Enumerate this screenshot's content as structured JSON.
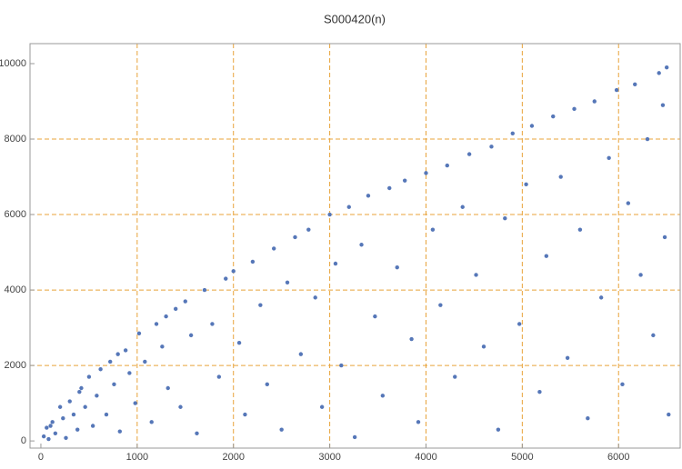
{
  "chart_data": {
    "type": "scatter",
    "title": "S000420(n)",
    "xlim": [
      -113,
      6640
    ],
    "ylim": [
      -190,
      10530
    ],
    "xticks": [
      0,
      1000,
      2000,
      3000,
      4000,
      5000,
      6000
    ],
    "yticks": [
      0,
      2000,
      4000,
      6000,
      8000,
      10000
    ],
    "xgrid": [
      1000,
      2000,
      3000,
      4000,
      5000,
      6000
    ],
    "ygrid": [
      2000,
      4000,
      6000,
      8000
    ],
    "grid_color": "#e8a33a",
    "series": [
      {
        "color": "#5677b8",
        "x": [
          30,
          60,
          80,
          120,
          150,
          200,
          230,
          260,
          300,
          340,
          380,
          420,
          460,
          500,
          540,
          580,
          620,
          680,
          720,
          760,
          820,
          880,
          920,
          980,
          1020,
          1080,
          1150,
          1200,
          1260,
          1320,
          1400,
          1450,
          1500,
          1560,
          1620,
          1700,
          1780,
          1850,
          1920,
          2000,
          2060,
          2120,
          2200,
          2280,
          2350,
          2420,
          2500,
          2560,
          2640,
          2700,
          2780,
          2850,
          2920,
          3000,
          3060,
          3120,
          3200,
          3260,
          3330,
          3400,
          3470,
          3550,
          3620,
          3700,
          3780,
          3850,
          3920,
          4000,
          4070,
          4150,
          4220,
          4300,
          4380,
          4450,
          4520,
          4600,
          4680,
          4750,
          4820,
          4900,
          4970,
          5040,
          5100,
          5180,
          5250,
          5320,
          5400,
          5470,
          5540,
          5600,
          5680,
          5750,
          5820,
          5900,
          5980,
          6040,
          6100,
          6170,
          6230,
          6300,
          6360,
          6420,
          6480,
          6500,
          6520,
          6460,
          1300,
          800,
          400,
          100
        ],
        "y": [
          120,
          350,
          50,
          500,
          200,
          900,
          600,
          80,
          1050,
          700,
          300,
          1400,
          900,
          1700,
          400,
          1200,
          1900,
          700,
          2100,
          1500,
          250,
          2400,
          1800,
          1000,
          2850,
          2100,
          500,
          3100,
          2500,
          1400,
          3500,
          900,
          3700,
          2800,
          200,
          4000,
          3100,
          1700,
          4300,
          4500,
          2600,
          700,
          4750,
          3600,
          1500,
          5100,
          300,
          4200,
          5400,
          2300,
          5600,
          3800,
          900,
          6000,
          4700,
          2000,
          6200,
          100,
          5200,
          6500,
          3300,
          1200,
          6700,
          4600,
          6900,
          2700,
          500,
          7100,
          5600,
          3600,
          7300,
          1700,
          6200,
          7600,
          4400,
          2500,
          7800,
          300,
          5900,
          8150,
          3100,
          6800,
          8350,
          1300,
          4900,
          8600,
          7000,
          2200,
          8800,
          5600,
          600,
          9000,
          3800,
          7500,
          9300,
          1500,
          6300,
          9450,
          4400,
          8000,
          2800,
          9750,
          5400,
          9900,
          700,
          8900,
          3300,
          2300,
          1300,
          400
        ]
      }
    ]
  }
}
